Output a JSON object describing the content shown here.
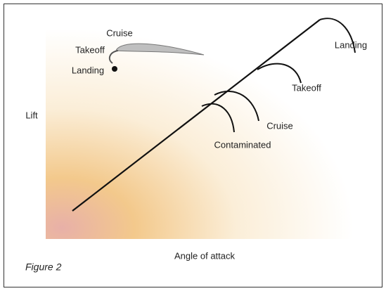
{
  "axes": {
    "y_label": "Lift",
    "x_label": "Angle of attack"
  },
  "airfoil": {
    "labels": [
      "Cruise",
      "Takeoff",
      "Landing"
    ]
  },
  "curves": {
    "labels": [
      "Landing",
      "Takeoff",
      "Cruise",
      "Contaminated"
    ]
  },
  "caption": "Figure 2"
}
